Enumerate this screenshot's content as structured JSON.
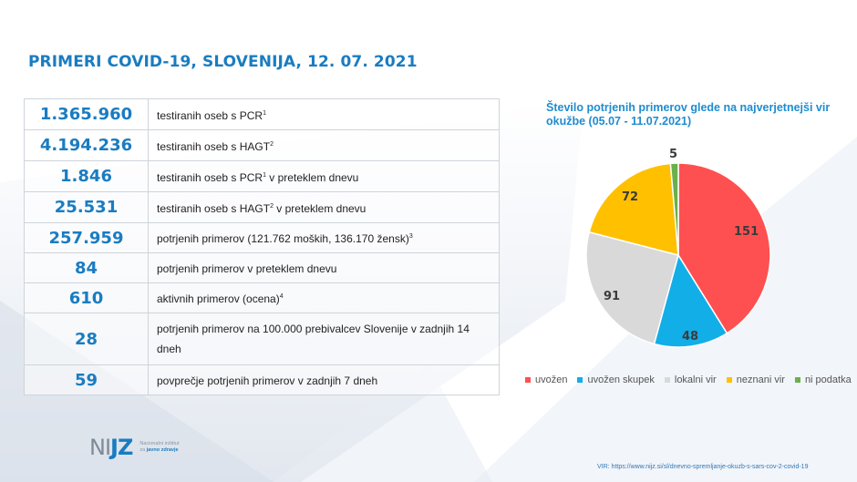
{
  "title": "PRIMERI COVID-19, SLOVENIJA, 12. 07. 2021",
  "stats_table": {
    "rows": [
      {
        "value": "1.365.960",
        "text": "testiranih oseb s PCR",
        "sup": "1",
        "after": ""
      },
      {
        "value": "4.194.236",
        "text": "testiranih oseb s HAGT",
        "sup": "2",
        "after": ""
      },
      {
        "value": "1.846",
        "text": "testiranih oseb s PCR",
        "sup": "1",
        "after": " v preteklem dnevu"
      },
      {
        "value": "25.531",
        "text": "testiranih oseb s HAGT",
        "sup": "2",
        "after": " v preteklem dnevu"
      },
      {
        "value": "257.959",
        "text": "potrjenih primerov  (121.762 moških, 136.170 žensk)",
        "sup": "3",
        "after": ""
      },
      {
        "value": "84",
        "text": "potrjenih primerov v preteklem dnevu",
        "sup": "",
        "after": ""
      },
      {
        "value": "610",
        "text": "aktivnih primerov (ocena)",
        "sup": "4",
        "after": ""
      },
      {
        "value": "28",
        "text": "potrjenih primerov na 100.000 prebivalcev Slovenije v zadnjih 14 dneh",
        "sup": "",
        "after": ""
      },
      {
        "value": "59",
        "text": "povprečje potrjenih primerov v zadnjih 7 dneh",
        "sup": "",
        "after": ""
      }
    ]
  },
  "chart": {
    "title": "Število potrjenih primerov glede na najverjetnejši vir okužbe (05.07 - 11.07.2021)"
  },
  "chart_data": {
    "type": "pie",
    "title": "Število potrjenih primerov glede na najverjetnejši vir okužbe (05.07 - 11.07.2021)",
    "categories": [
      "uvožen",
      "uvožen skupek",
      "lokalni vir",
      "neznani vir",
      "ni podatka"
    ],
    "values": [
      151,
      48,
      91,
      72,
      5
    ],
    "colors": [
      "#fe5050",
      "#12aee8",
      "#d9d9d9",
      "#ffc000",
      "#6ab04c"
    ],
    "legend_position": "bottom",
    "data_labels": true
  },
  "legend": [
    {
      "label": "uvožen",
      "color": "#fe5050"
    },
    {
      "label": "uvožen skupek",
      "color": "#12aee8"
    },
    {
      "label": "lokalni vir",
      "color": "#d9d9d9"
    },
    {
      "label": "neznani vir",
      "color": "#ffc000"
    },
    {
      "label": "ni podatka",
      "color": "#6ab04c"
    }
  ],
  "logo": {
    "mark_n": "NI",
    "mark_jz": "JZ",
    "line1": "Nacionalni inštitut",
    "line2_prefix": "za ",
    "line2_bold": "javno zdravje"
  },
  "source": "VIR: https://www.nijz.si/sl/dnevno-spremljanje-okuzb-s-sars-cov-2-covid-19"
}
